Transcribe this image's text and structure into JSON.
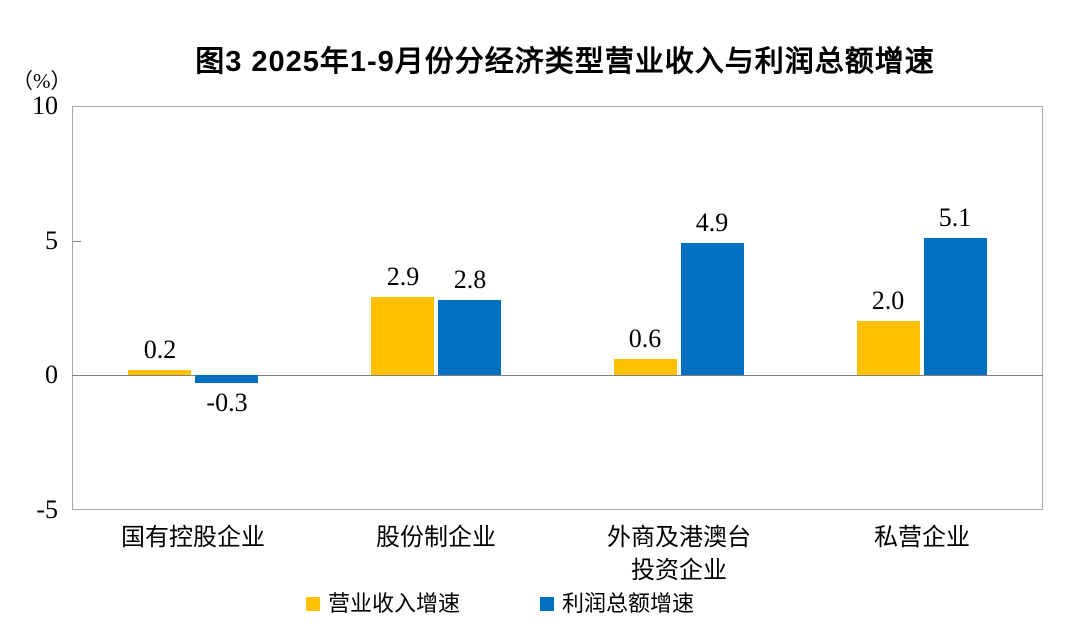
{
  "chart_data": {
    "type": "bar",
    "title": "图3 2025年1-9月份分经济类型营业收入与利润总额增速",
    "unit_label": "（%）",
    "categories": [
      "国有控股企业",
      "股份制企业",
      "外商及港澳台\n投资企业",
      "私营企业"
    ],
    "series": [
      {
        "name": "营业收入增速",
        "color": "#FFC000",
        "values": [
          0.2,
          2.9,
          0.6,
          2.0
        ],
        "labels": [
          "0.2",
          "2.9",
          "0.6",
          "2.0"
        ]
      },
      {
        "name": "利润总额增速",
        "color": "#0070C0",
        "values": [
          -0.3,
          2.8,
          4.9,
          5.1
        ],
        "labels": [
          "-0.3",
          "2.8",
          "4.9",
          "5.1"
        ]
      }
    ],
    "ylim": [
      -5,
      10
    ],
    "yticks": [
      "10",
      "5",
      "0",
      "-5"
    ],
    "ytick_values": [
      10,
      5,
      0,
      -5
    ],
    "grid": false,
    "legend_position": "bottom",
    "axis_color": "#808080",
    "text_color": "#000000"
  }
}
